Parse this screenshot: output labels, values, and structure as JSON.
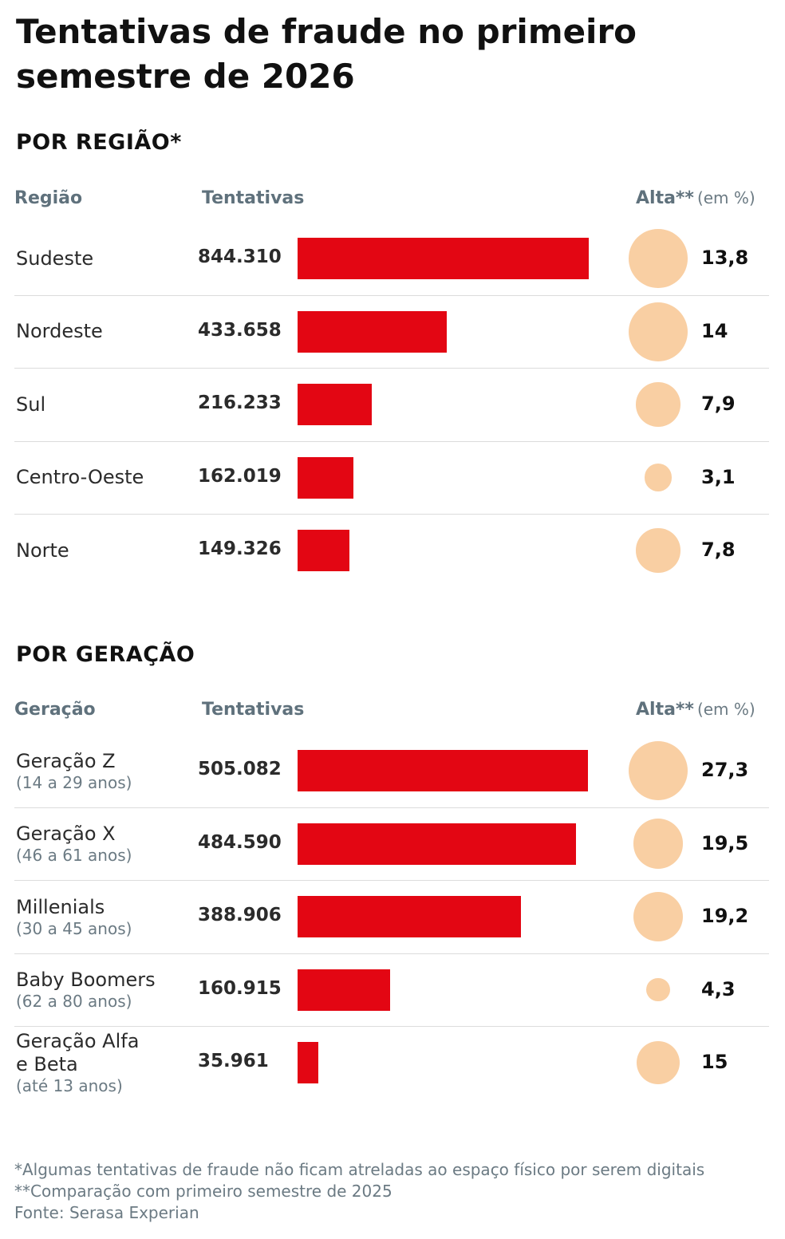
{
  "title": "Tentativas de fraude no primeiro semestre de 2026",
  "sections": {
    "region": {
      "heading": "POR REGIÃO*",
      "col_label": "Região",
      "col_value": "Tentativas",
      "col_pct": "Alta**",
      "col_pct_unit": "(em %)"
    },
    "generation": {
      "heading": "POR GERAÇÃO",
      "col_label": "Geração",
      "col_value": "Tentativas",
      "col_pct": "Alta**",
      "col_pct_unit": "(em %)"
    }
  },
  "colors": {
    "bar": "#e30613",
    "bubble": "#f9cfa3"
  },
  "chart_data": [
    {
      "type": "bar",
      "title": "POR REGIÃO*",
      "categories": [
        "Sudeste",
        "Nordeste",
        "Sul",
        "Centro-Oeste",
        "Norte"
      ],
      "values": [
        844310,
        433658,
        216233,
        162019,
        149326
      ],
      "value_labels": [
        "844.310",
        "433.658",
        "216.233",
        "162.019",
        "149.326"
      ],
      "growth_pct": [
        13.8,
        14,
        7.9,
        3.1,
        7.8
      ],
      "growth_labels": [
        "13,8",
        "14",
        "7,9",
        "3,1",
        "7,8"
      ]
    },
    {
      "type": "bar",
      "title": "POR GERAÇÃO",
      "categories": [
        "Geração Z",
        "Geração X",
        "Millenials",
        "Baby Boomers",
        "Geração Alfa e Beta"
      ],
      "subtitles": [
        "(14 a 29 anos)",
        "(46 a 61 anos)",
        "(30 a 45 anos)",
        "(62 a 80 anos)",
        "(até 13 anos)"
      ],
      "values": [
        505082,
        484590,
        388906,
        160915,
        35961
      ],
      "value_labels": [
        "505.082",
        "484.590",
        "388.906",
        "160.915",
        "35.961"
      ],
      "growth_pct": [
        27.3,
        19.5,
        19.2,
        4.3,
        15
      ],
      "growth_labels": [
        "27,3",
        "19,5",
        "19,2",
        "4,3",
        "15"
      ]
    }
  ],
  "footnotes": [
    "*Algumas tentativas de fraude não ficam atreladas ao espaço físico por serem digitais",
    "**Comparação com primeiro semestre de 2025",
    "Fonte: Serasa Experian"
  ]
}
